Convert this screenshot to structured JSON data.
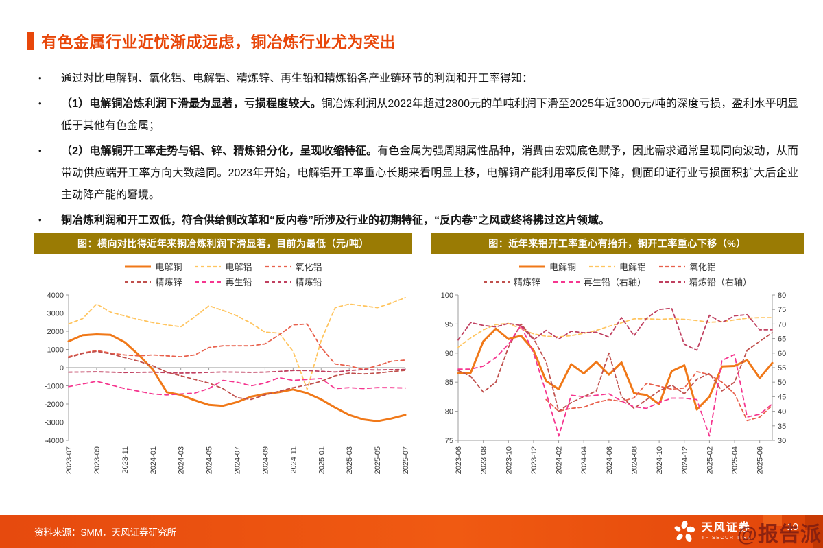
{
  "slide": {
    "title": "有色金属行业近忧渐成远虑，铜冶炼行业尤为突出",
    "bullets": [
      {
        "segments": [
          {
            "text": "通过对比电解铜、氧化铝、电解铝、精炼锌、再生铅和精炼铅各产业链环节的利润和开工率得知：",
            "bold": false
          }
        ]
      },
      {
        "segments": [
          {
            "text": "（1）电解铜冶炼利润下滑最为显著，亏损程度较大。",
            "bold": true
          },
          {
            "text": "铜冶炼利润从2022年超过2800元的单吨利润下滑至2025年近3000元/吨的深度亏损，盈利水平明显低于其他有色金属；",
            "bold": false
          }
        ]
      },
      {
        "segments": [
          {
            "text": "（2）电解铜开工率走势与铝、锌、精炼铅分化，呈现收缩特征。",
            "bold": true
          },
          {
            "text": "有色金属为强周期属性品种，消费由宏观底色赋予，因此需求通常呈现同向波动，从而带动供应端开工率方向大致趋同。2023年开始，电解铝开工率重心长期来看明显上移，电解铜产能利用率反倒下降，侧面印证行业亏损面积扩大后企业主动降产能的窘境。",
            "bold": false
          }
        ]
      },
      {
        "segments": [
          {
            "text": "铜冶炼利润和开工双低，符合供给侧改革和“反内卷”所涉及行业的初期特征，“反内卷”之风或终将拂过这片领域。",
            "bold": true
          }
        ]
      }
    ],
    "footer": {
      "source": "资料来源：SMM，天风证券研究所",
      "brand_cn": "天风证券",
      "brand_en": "TF SECURITIES",
      "page": "10",
      "watermark": "@报告派"
    }
  },
  "colors": {
    "accent_orange": "#E8470A",
    "chart_header_gold": "#9A7B04",
    "footer_orange": "#E95210",
    "copper_line": "#F07818",
    "aluminum_line": "#FFC45E",
    "alumina_line": "#E8604C",
    "zinc_line": "#C0504D",
    "recycled_lead_line": "#F5368F",
    "refined_lead_line": "#C04060"
  },
  "chart_data": [
    {
      "type": "line",
      "title": "图：横向对比得近年来铜冶炼利润下滑显著，目前为最低（元/吨）",
      "ylabel": "元/吨",
      "x": [
        "2023-07",
        "2023-08",
        "2023-09",
        "2023-10",
        "2023-11",
        "2023-12",
        "2024-01",
        "2024-02",
        "2024-03",
        "2024-04",
        "2024-05",
        "2024-06",
        "2024-07",
        "2024-08",
        "2024-09",
        "2024-10",
        "2024-11",
        "2024-12",
        "2025-01",
        "2025-02",
        "2025-03",
        "2025-04",
        "2025-05",
        "2025-06",
        "2025-07"
      ],
      "x_tick_every": 2,
      "ylim": [
        -4000,
        4000
      ],
      "ytick": 1000,
      "zero_axis": true,
      "bottom_axis": false,
      "grid": false,
      "legend_position": "top",
      "series": [
        {
          "name": "电解铜",
          "color": "#F07818",
          "dash": null,
          "width": 3,
          "values": [
            1450,
            1780,
            1830,
            1800,
            1400,
            700,
            -100,
            -1350,
            -1500,
            -1800,
            -2050,
            -2100,
            -1900,
            -1600,
            -1450,
            -1350,
            -1200,
            -1400,
            -1750,
            -2200,
            -2600,
            -2850,
            -2950,
            -2800,
            -2600
          ]
        },
        {
          "name": "电解铝",
          "color": "#FFC45E",
          "dash": "5 4",
          "width": 1.8,
          "values": [
            2400,
            2700,
            3500,
            3050,
            2850,
            2650,
            2480,
            2350,
            2250,
            2800,
            3400,
            3150,
            2850,
            2450,
            1950,
            1900,
            900,
            -1200,
            1500,
            3300,
            3500,
            3400,
            3300,
            3550,
            3850
          ]
        },
        {
          "name": "氧化铝",
          "color": "#E8604C",
          "dash": "5 4",
          "width": 1.8,
          "values": [
            600,
            800,
            950,
            800,
            700,
            650,
            700,
            650,
            600,
            700,
            1100,
            1200,
            1200,
            1200,
            1300,
            1800,
            2350,
            2400,
            1100,
            200,
            100,
            -100,
            100,
            350,
            420
          ]
        },
        {
          "name": "精炼锌",
          "color": "#C0504D",
          "dash": "5 4",
          "width": 1.8,
          "values": [
            550,
            780,
            900,
            760,
            550,
            350,
            100,
            -250,
            -450,
            -650,
            -850,
            -1150,
            -1650,
            -1750,
            -1500,
            -1300,
            -1100,
            -950,
            -750,
            -450,
            -300,
            -350,
            -300,
            -220,
            -150
          ]
        },
        {
          "name": "再生铅",
          "color": "#F5368F",
          "dash": "6 5",
          "width": 1.8,
          "values": [
            -1050,
            -900,
            -750,
            -950,
            -1150,
            -1300,
            -1450,
            -1500,
            -1450,
            -1400,
            -1150,
            -700,
            -800,
            -1000,
            -850,
            -550,
            -700,
            -650,
            -600,
            -1150,
            -1100,
            -1150,
            -1100,
            -1100,
            -1120
          ]
        },
        {
          "name": "精炼铅",
          "color": "#C04060",
          "dash": "5 4",
          "width": 1.8,
          "values": [
            -250,
            -240,
            -230,
            -250,
            -270,
            -260,
            -250,
            -280,
            -300,
            -290,
            -260,
            -240,
            -250,
            -260,
            -250,
            -210,
            -160,
            -160,
            -200,
            -240,
            -160,
            -110,
            -130,
            -110,
            -100
          ]
        }
      ]
    },
    {
      "type": "line",
      "title": "图：近年来铝开工率重心有抬升，铜开工率重心下移（%）",
      "ylabel": "%",
      "x": [
        "2023-06",
        "2023-07",
        "2023-08",
        "2023-09",
        "2023-10",
        "2023-11",
        "2023-12",
        "2024-01",
        "2024-02",
        "2024-03",
        "2024-04",
        "2024-05",
        "2024-06",
        "2024-07",
        "2024-08",
        "2024-09",
        "2024-10",
        "2024-11",
        "2024-12",
        "2025-01",
        "2025-02",
        "2025-03",
        "2025-04",
        "2025-05",
        "2025-06",
        "2025-07"
      ],
      "x_tick_every": 2,
      "ylim": [
        75,
        100
      ],
      "ytick": 5,
      "ylim_right": [
        30,
        80
      ],
      "ytick_right": 5,
      "zero_axis": false,
      "bottom_axis": true,
      "grid": false,
      "legend_position": "top",
      "series": [
        {
          "name": "电解铜",
          "color": "#F07818",
          "dash": null,
          "width": 3,
          "values": [
            86.5,
            86.6,
            92.0,
            94.2,
            92.4,
            93.0,
            90.5,
            85.2,
            83.8,
            88.1,
            86.5,
            88.5,
            86.3,
            88.4,
            83.1,
            82.8,
            81.2,
            86.9,
            87.9,
            80.3,
            82.5,
            87.7,
            87.8,
            88.8,
            85.7,
            88.3
          ]
        },
        {
          "name": "电解铝",
          "color": "#FFC45E",
          "dash": "5 4",
          "width": 1.8,
          "values": [
            91.0,
            92.6,
            94.0,
            94.9,
            95.1,
            94.2,
            93.3,
            92.9,
            92.8,
            93.0,
            93.4,
            93.9,
            94.6,
            95.2,
            95.9,
            95.9,
            95.8,
            95.9,
            95.8,
            95.6,
            95.3,
            95.4,
            95.7,
            96.0,
            96.1,
            96.1
          ]
        },
        {
          "name": "氧化铝",
          "color": "#E8604C",
          "dash": "5 4",
          "width": 1.8,
          "values": [
            null,
            null,
            null,
            null,
            null,
            null,
            null,
            82.0,
            80.0,
            80.5,
            80.7,
            81.5,
            82.0,
            81.7,
            82.3,
            84.8,
            84.3,
            83.8,
            84.0,
            86.8,
            86.3,
            85.0,
            83.0,
            78.4,
            79.0,
            81.0
          ]
        },
        {
          "name": "精炼锌",
          "color": "#C0504D",
          "dash": "5 4",
          "width": 1.8,
          "values": [
            87.0,
            86.0,
            83.3,
            85.0,
            91.0,
            95.0,
            92.5,
            88.5,
            80.0,
            81.5,
            82.5,
            83.5,
            90.0,
            82.5,
            80.5,
            82.0,
            83.5,
            84.5,
            83.0,
            85.5,
            86.5,
            83.5,
            85.0,
            90.5,
            92.0,
            93.5
          ]
        },
        {
          "name": "再生铅（右轴）",
          "color": "#F5368F",
          "dash": "6 5",
          "width": 1.8,
          "axis": "right",
          "values": [
            54.5,
            54.5,
            55.5,
            58.5,
            63.0,
            69.5,
            60.0,
            46.5,
            31.5,
            45.5,
            45.0,
            45.5,
            46.0,
            43.5,
            41.5,
            41.0,
            43.0,
            44.5,
            44.5,
            44.0,
            31.5,
            57.5,
            59.5,
            38.0,
            39.0,
            42.5
          ]
        },
        {
          "name": "精炼铅（右轴）",
          "color": "#C04060",
          "dash": "5 4",
          "width": 1.8,
          "axis": "right",
          "values": [
            64.5,
            70.5,
            69.5,
            69.0,
            70.2,
            69.5,
            64.5,
            67.8,
            64.8,
            67.5,
            67.0,
            67.2,
            65.5,
            72.2,
            66.0,
            72.0,
            75.0,
            75.4,
            63.0,
            61.0,
            73.0,
            70.5,
            72.8,
            73.2,
            68.0,
            68.0
          ]
        }
      ]
    }
  ]
}
